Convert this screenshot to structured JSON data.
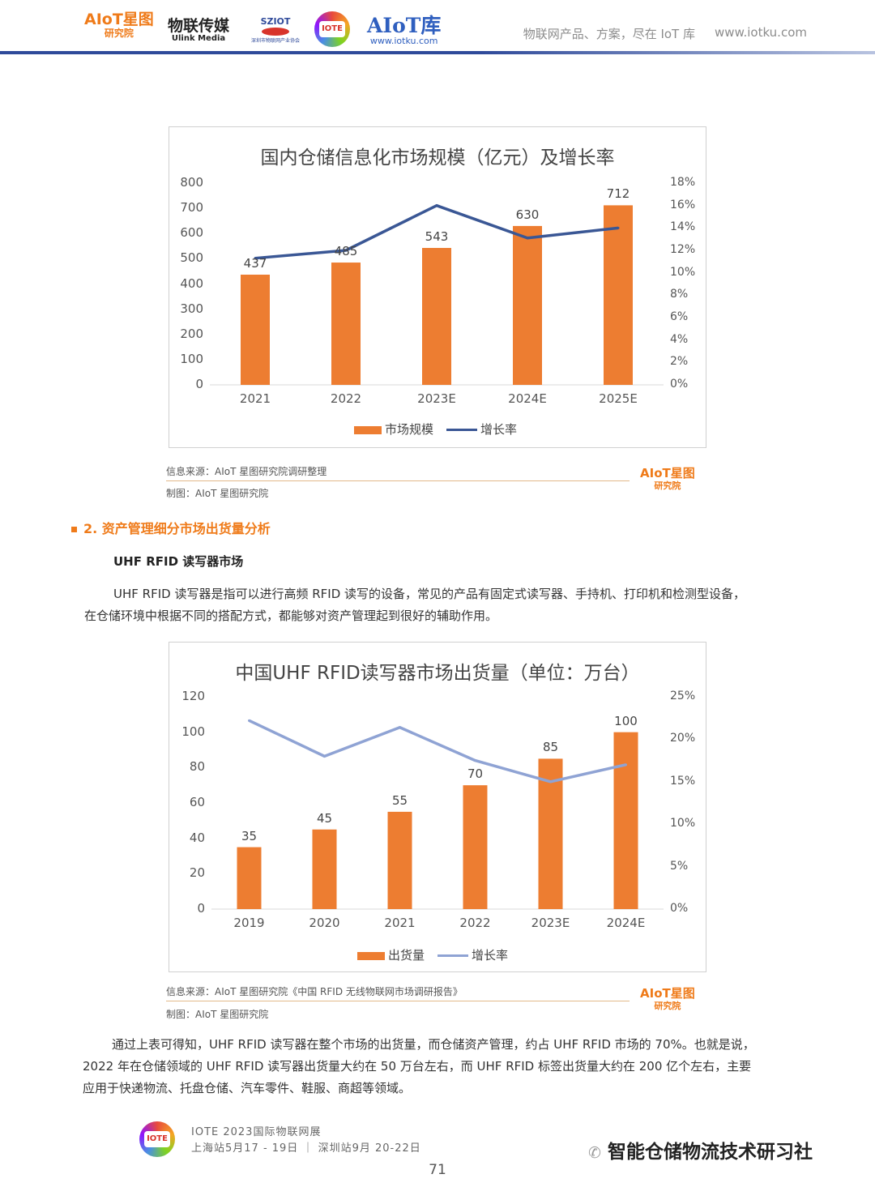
{
  "header": {
    "logos": [
      {
        "name": "aiot-xingtu",
        "line1": "AIoT星图",
        "line2": "研究院"
      },
      {
        "name": "ulink",
        "line1": "物联传媒",
        "line2": "Ulink Media"
      },
      {
        "name": "sziot",
        "line1": "SZIOT",
        "line2": "深圳市物联网产业协会"
      },
      {
        "name": "iote",
        "line1": "IOTE"
      },
      {
        "name": "aiotku",
        "line1": "AIoT库",
        "line2": "www.iotku.com"
      }
    ],
    "tagline": "物联网产品、方案，尽在 IoT 库",
    "site": "www.iotku.com",
    "colors": {
      "rule": "#2f4a9a",
      "brand": "#ef7b1a"
    }
  },
  "chart_data": [
    {
      "type": "bar",
      "title": "国内仓储信息化市场规模（亿元）及增长率",
      "categories": [
        "2021",
        "2022",
        "2023E",
        "2024E",
        "2025E"
      ],
      "series": [
        {
          "name": "市场规模",
          "type": "bar",
          "axis": "left",
          "color": "#ed7d31",
          "values": [
            437,
            485,
            543,
            630,
            712
          ]
        },
        {
          "name": "增长率",
          "type": "line",
          "axis": "right",
          "color": "#3a5795",
          "values": [
            11.3,
            12.0,
            16.0,
            13.1,
            14.0
          ]
        }
      ],
      "data_labels": [
        "437",
        "485",
        "543",
        "630",
        "712"
      ],
      "ylim": [
        0,
        800
      ],
      "yticks": [
        "0",
        "100",
        "200",
        "300",
        "400",
        "500",
        "600",
        "700",
        "800"
      ],
      "y2lim": [
        0,
        18
      ],
      "y2ticks": [
        "0%",
        "2%",
        "4%",
        "6%",
        "8%",
        "10%",
        "12%",
        "14%",
        "16%",
        "18%"
      ],
      "legend": "bottom",
      "grid": false
    },
    {
      "type": "bar",
      "title": "中国UHF RFID读写器市场出货量（单位：万台）",
      "categories": [
        "2019",
        "2020",
        "2021",
        "2022",
        "2023E",
        "2024E"
      ],
      "series": [
        {
          "name": "出货量",
          "type": "bar",
          "axis": "left",
          "color": "#ed7d31",
          "values": [
            35,
            45,
            55,
            70,
            85,
            100
          ]
        },
        {
          "name": "增长率",
          "type": "line",
          "axis": "right",
          "color": "#8fa3d4",
          "values": [
            22.2,
            18.0,
            21.4,
            17.5,
            15.0,
            17.0
          ]
        }
      ],
      "data_labels": [
        "35",
        "45",
        "55",
        "70",
        "85",
        "100"
      ],
      "ylim": [
        0,
        120
      ],
      "yticks": [
        "0",
        "20",
        "40",
        "60",
        "80",
        "100",
        "120"
      ],
      "y2lim": [
        0,
        25
      ],
      "y2ticks": [
        "0%",
        "5%",
        "10%",
        "15%",
        "20%",
        "25%"
      ],
      "legend": "bottom",
      "grid": false
    }
  ],
  "source1": {
    "info": "信息来源：AIoT 星图研究院调研整理",
    "made": "制图：AIoT 星图研究院"
  },
  "section": {
    "heading": "2. 资产管理细分市场出货量分析",
    "subheading": "UHF RFID 读写器市场"
  },
  "para1": [
    "UHF RFID 读写器是指可以进行高频 RFID 读写的设备，常见的产品有固定式读写器、手持机、打印机和检测型设备，",
    "在仓储环境中根据不同的搭配方式，都能够对资产管理起到很好的辅助作用。"
  ],
  "source2": {
    "info": "信息来源：AIoT 星图研究院《中国 RFID 无线物联网市场调研报告》",
    "made": "制图：AIoT 星图研究院"
  },
  "mini_logo": {
    "line1": "AIoT星图",
    "line2": "研究院"
  },
  "para2": [
    "通过上表可得知，UHF RFID 读写器在整个市场的出货量，而仓储资产管理，约占 UHF RFID 市场的 70%。也就是说，",
    "2022 年在仓储领域的 UHF RFID 读写器出货量大约在 50 万台左右，而 UHF RFID 标签出货量大约在 200 亿个左右，主要",
    "应用于快递物流、托盘仓储、汽车零件、鞋服、商超等领域。"
  ],
  "footer": {
    "event_line1": "IOTE 2023国际物联网展",
    "event_line2": "上海站5月17 - 19日 ｜ 深圳站9月 20-22日",
    "page_number": "71",
    "wechat": "智能仓储物流技术研习社"
  }
}
